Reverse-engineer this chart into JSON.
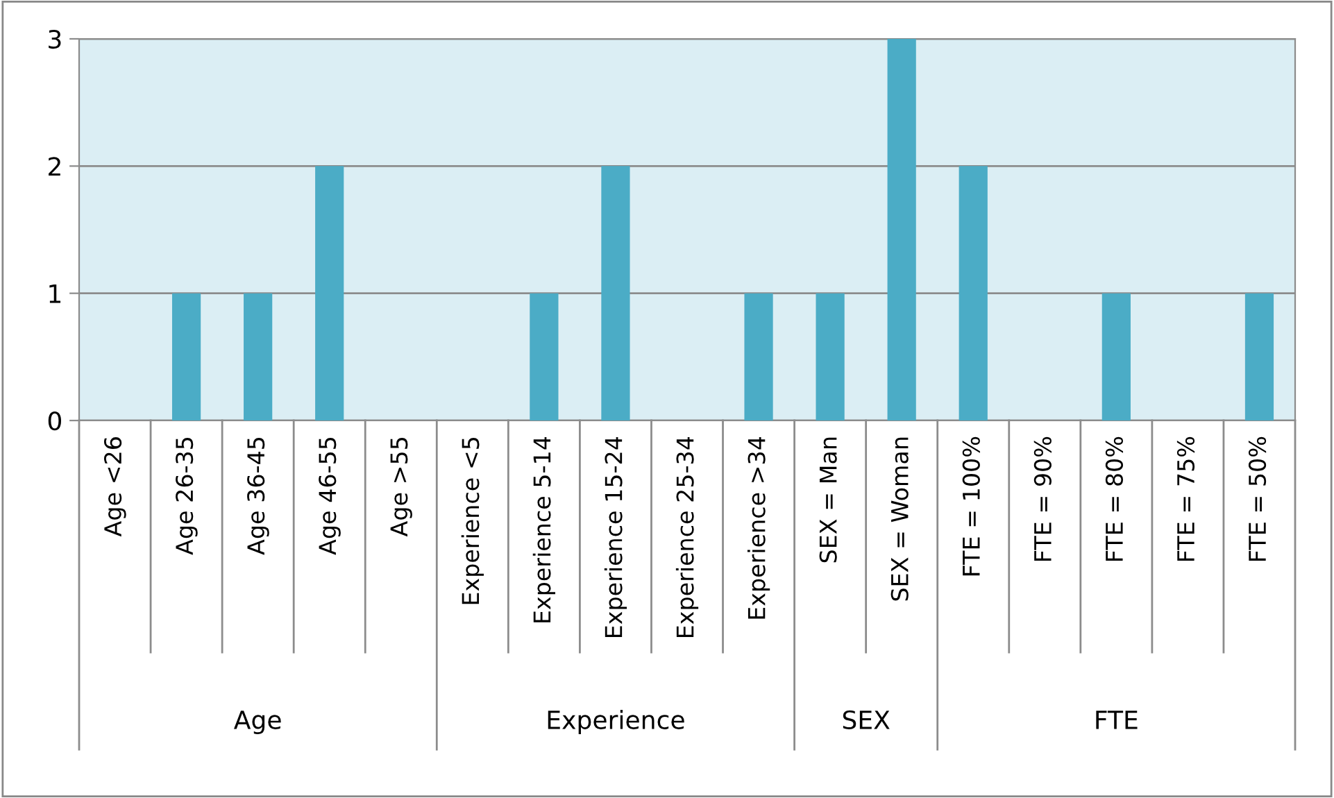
{
  "chart_data": {
    "type": "bar",
    "categories": [
      "Age <26",
      "Age 26-35",
      "Age 36-45",
      "Age 46-55",
      "Age >55",
      "Experience <5",
      "Experience 5-14",
      "Experience 15-24",
      "Experience 25-34",
      "Experience >34",
      "SEX = Man",
      "SEX = Woman",
      "FTE = 100%",
      "FTE = 90%",
      "FTE = 80%",
      "FTE = 75%",
      "FTE = 50%"
    ],
    "values": [
      0,
      1,
      1,
      2,
      0,
      0,
      1,
      2,
      0,
      1,
      1,
      3,
      2,
      0,
      1,
      0,
      1
    ],
    "color": "#4bacc6",
    "ylim": [
      0,
      3
    ],
    "yticks": [
      0,
      1,
      2,
      3
    ],
    "grid": "y",
    "legend": false,
    "annotations": [
      "Age",
      "Experience",
      "SEX",
      "FTE"
    ]
  }
}
